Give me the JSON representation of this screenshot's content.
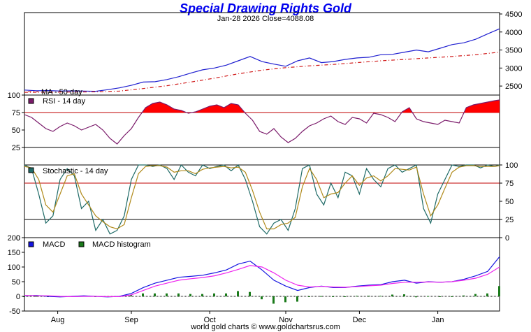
{
  "title": "Special Drawing Rights Gold",
  "subtitle": "Jan-28  2026   Close=4088.08",
  "footer": "world gold charts © www.goldchartsrus.com",
  "colors": {
    "title": "#0000ee",
    "price_line": "#1f1fd0",
    "ma_line": "#d01818",
    "rsi_line": "#7a1a6a",
    "rsi_fill": "#ff0000",
    "reference_line": "#c00000",
    "stoch_k": "#1e6a66",
    "stoch_d": "#b08a1a",
    "macd_line": "#1414e0",
    "macd_signal": "#ee22ee",
    "macd_histogram": "#1a7a1a",
    "axis": "#000000"
  },
  "chart_data": [
    {
      "id": "price",
      "type": "line",
      "title": "Special Drawing Rights Gold",
      "ylim": [
        2250,
        4500
      ],
      "right_ticks": [
        2500,
        3000,
        3500,
        4000,
        4500
      ],
      "series": [
        {
          "name": "Price",
          "color_key": "price_line",
          "x": [
            0,
            5,
            10,
            15,
            20,
            25,
            30,
            35,
            40,
            45,
            50,
            55,
            60,
            65,
            70,
            75,
            80,
            85,
            90,
            95,
            100,
            105,
            110,
            115,
            120,
            125,
            130,
            135,
            140,
            145,
            150,
            155,
            160,
            165,
            170,
            175,
            180,
            185,
            190,
            195,
            200
          ],
          "values": [
            2390,
            2370,
            2375,
            2362,
            2367,
            2360,
            2355,
            2400,
            2450,
            2520,
            2610,
            2620,
            2680,
            2760,
            2860,
            2950,
            3000,
            3080,
            3200,
            3320,
            3180,
            3110,
            3050,
            3200,
            3280,
            3150,
            3180,
            3240,
            3280,
            3300,
            3370,
            3380,
            3440,
            3500,
            3450,
            3550,
            3650,
            3700,
            3800,
            3950,
            4088
          ]
        },
        {
          "name": "MA - 50 day",
          "color_key": "ma_line",
          "dashed": true,
          "x": [
            0,
            10,
            20,
            30,
            40,
            50,
            60,
            70,
            80,
            90,
            100,
            110,
            120,
            130,
            140,
            150,
            160,
            170,
            180,
            190,
            200
          ],
          "values": [
            2325,
            2330,
            2335,
            2340,
            2360,
            2430,
            2510,
            2610,
            2720,
            2840,
            2940,
            3010,
            3060,
            3100,
            3150,
            3200,
            3240,
            3280,
            3320,
            3370,
            3440
          ]
        }
      ],
      "legend": [
        "MA - 50 day"
      ],
      "axis_label_x": "",
      "axis_label_y": ""
    },
    {
      "id": "rsi",
      "type": "line",
      "title": "RSI - 14 day",
      "ylim": [
        0,
        100
      ],
      "left_ticks": [
        25,
        50,
        75,
        100
      ],
      "reference_lines": [
        75,
        25
      ],
      "overbought_fill_above": 75,
      "series": [
        {
          "name": "RSI - 14 day",
          "color_key": "rsi_line",
          "x": [
            0,
            3,
            6,
            9,
            12,
            15,
            18,
            21,
            24,
            27,
            30,
            33,
            36,
            39,
            42,
            45,
            48,
            51,
            54,
            57,
            60,
            63,
            66,
            69,
            72,
            75,
            78,
            81,
            84,
            87,
            90,
            93,
            96,
            99,
            102,
            105,
            108,
            111,
            114,
            117,
            120,
            123,
            126,
            129,
            132,
            135,
            138,
            141,
            144,
            147,
            150,
            153,
            156,
            159,
            162,
            165,
            168,
            171,
            174,
            177,
            180,
            183,
            186,
            189,
            192,
            195,
            198,
            200
          ],
          "values": [
            72,
            68,
            60,
            52,
            48,
            55,
            60,
            56,
            50,
            54,
            58,
            50,
            38,
            30,
            42,
            52,
            68,
            82,
            88,
            90,
            86,
            80,
            78,
            74,
            76,
            80,
            84,
            86,
            82,
            88,
            86,
            74,
            64,
            48,
            44,
            52,
            40,
            32,
            38,
            48,
            56,
            60,
            66,
            70,
            62,
            58,
            68,
            66,
            60,
            74,
            72,
            68,
            62,
            76,
            82,
            66,
            62,
            60,
            58,
            64,
            62,
            60,
            82,
            86,
            88,
            90,
            92,
            93
          ]
        }
      ],
      "axis_label_x": "",
      "axis_label_y": ""
    },
    {
      "id": "stochastic",
      "type": "line",
      "title": "Stochastic - 14 day",
      "ylim": [
        0,
        100
      ],
      "right_ticks": [
        0,
        25,
        50,
        75,
        100
      ],
      "left_ticks": [
        0
      ],
      "reference_lines": [
        75,
        25
      ],
      "series": [
        {
          "name": "%K",
          "color_key": "stoch_k",
          "x": [
            0,
            3,
            6,
            9,
            12,
            15,
            18,
            21,
            24,
            27,
            30,
            33,
            36,
            39,
            42,
            45,
            48,
            51,
            54,
            57,
            60,
            63,
            66,
            69,
            72,
            75,
            78,
            81,
            84,
            87,
            90,
            93,
            96,
            99,
            102,
            105,
            108,
            111,
            114,
            117,
            120,
            123,
            126,
            129,
            132,
            135,
            138,
            141,
            144,
            147,
            150,
            153,
            156,
            159,
            162,
            165,
            168,
            171,
            174,
            177,
            180,
            183,
            186,
            189,
            192,
            195,
            198,
            200
          ],
          "values": [
            100,
            95,
            60,
            20,
            30,
            80,
            95,
            85,
            40,
            50,
            10,
            25,
            5,
            10,
            30,
            80,
            100,
            100,
            98,
            100,
            95,
            80,
            100,
            90,
            85,
            100,
            95,
            98,
            100,
            92,
            100,
            80,
            50,
            15,
            5,
            20,
            25,
            10,
            40,
            95,
            100,
            60,
            45,
            75,
            55,
            90,
            85,
            60,
            95,
            80,
            70,
            95,
            100,
            90,
            95,
            100,
            40,
            20,
            60,
            80,
            100,
            98,
            100,
            100,
            96,
            100,
            98,
            100
          ]
        },
        {
          "name": "%D",
          "color_key": "stoch_d",
          "x": [
            0,
            3,
            6,
            9,
            12,
            15,
            18,
            21,
            24,
            27,
            30,
            33,
            36,
            39,
            42,
            45,
            48,
            51,
            54,
            57,
            60,
            63,
            66,
            69,
            72,
            75,
            78,
            81,
            84,
            87,
            90,
            93,
            96,
            99,
            102,
            105,
            108,
            111,
            114,
            117,
            120,
            123,
            126,
            129,
            132,
            135,
            138,
            141,
            144,
            147,
            150,
            153,
            156,
            159,
            162,
            165,
            168,
            171,
            174,
            177,
            180,
            183,
            186,
            189,
            192,
            195,
            198,
            200
          ],
          "values": [
            98,
            96,
            80,
            45,
            35,
            60,
            85,
            88,
            60,
            45,
            30,
            22,
            15,
            12,
            18,
            55,
            88,
            98,
            99,
            99,
            97,
            90,
            92,
            92,
            88,
            94,
            96,
            97,
            98,
            96,
            97,
            90,
            65,
            35,
            12,
            12,
            18,
            20,
            28,
            70,
            95,
            80,
            55,
            60,
            62,
            75,
            85,
            72,
            82,
            85,
            78,
            85,
            95,
            94,
            93,
            97,
            60,
            30,
            45,
            68,
            90,
            97,
            99,
            99,
            98,
            98,
            98,
            99
          ]
        }
      ],
      "axis_label_x": "",
      "axis_label_y": ""
    },
    {
      "id": "macd",
      "type": "line",
      "title": "MACD",
      "ylim": [
        -50,
        200
      ],
      "left_ticks": [
        -50,
        0,
        50,
        100,
        150,
        200
      ],
      "legend": [
        "MACD",
        "MACD histogram"
      ],
      "series": [
        {
          "name": "MACD",
          "color_key": "macd_line",
          "x": [
            0,
            5,
            10,
            15,
            20,
            25,
            30,
            35,
            40,
            45,
            50,
            55,
            60,
            65,
            70,
            75,
            80,
            85,
            90,
            95,
            100,
            105,
            110,
            115,
            120,
            125,
            130,
            135,
            140,
            145,
            150,
            155,
            160,
            165,
            170,
            175,
            180,
            185,
            190,
            195,
            200
          ],
          "values": [
            2,
            3,
            0,
            -2,
            0,
            2,
            0,
            -2,
            0,
            10,
            30,
            45,
            55,
            65,
            68,
            72,
            80,
            90,
            110,
            120,
            90,
            55,
            35,
            20,
            30,
            35,
            30,
            30,
            35,
            38,
            40,
            50,
            55,
            45,
            50,
            48,
            50,
            58,
            70,
            85,
            135
          ]
        },
        {
          "name": "Signal",
          "color_key": "macd_signal",
          "x": [
            0,
            5,
            10,
            15,
            20,
            25,
            30,
            35,
            40,
            45,
            50,
            55,
            60,
            65,
            70,
            75,
            80,
            85,
            90,
            95,
            100,
            105,
            110,
            115,
            120,
            125,
            130,
            135,
            140,
            145,
            150,
            155,
            160,
            165,
            170,
            175,
            180,
            185,
            190,
            195,
            200
          ],
          "values": [
            3,
            2,
            2,
            0,
            -1,
            0,
            0,
            -1,
            -1,
            5,
            20,
            35,
            45,
            55,
            60,
            64,
            70,
            80,
            92,
            105,
            100,
            80,
            55,
            38,
            32,
            34,
            32,
            31,
            33,
            36,
            38,
            44,
            48,
            48,
            49,
            48,
            50,
            55,
            62,
            75,
            100
          ]
        }
      ],
      "histogram": {
        "name": "MACD histogram",
        "color_key": "macd_histogram",
        "x": [
          0,
          5,
          10,
          15,
          20,
          25,
          30,
          35,
          40,
          45,
          50,
          55,
          60,
          65,
          70,
          75,
          80,
          85,
          90,
          95,
          100,
          105,
          110,
          115,
          120,
          125,
          130,
          135,
          140,
          145,
          150,
          155,
          160,
          165,
          170,
          175,
          180,
          185,
          190,
          195,
          200
        ],
        "values": [
          -1,
          1,
          -2,
          -2,
          1,
          2,
          0,
          -1,
          1,
          5,
          10,
          10,
          10,
          10,
          8,
          8,
          10,
          10,
          18,
          15,
          -10,
          -25,
          -20,
          -18,
          -2,
          1,
          -2,
          -1,
          2,
          2,
          2,
          6,
          7,
          -3,
          1,
          0,
          0,
          3,
          8,
          10,
          35
        ]
      },
      "axis_label_x": "",
      "axis_label_y": ""
    }
  ],
  "x_axis": {
    "domain": [
      0,
      200
    ],
    "ticks": [
      {
        "label": "Aug",
        "at": 14
      },
      {
        "label": "Sep",
        "at": 45
      },
      {
        "label": "Oct",
        "at": 78
      },
      {
        "label": "Nov",
        "at": 110
      },
      {
        "label": "Dec",
        "at": 141
      },
      {
        "label": "Jan",
        "at": 174
      }
    ]
  }
}
